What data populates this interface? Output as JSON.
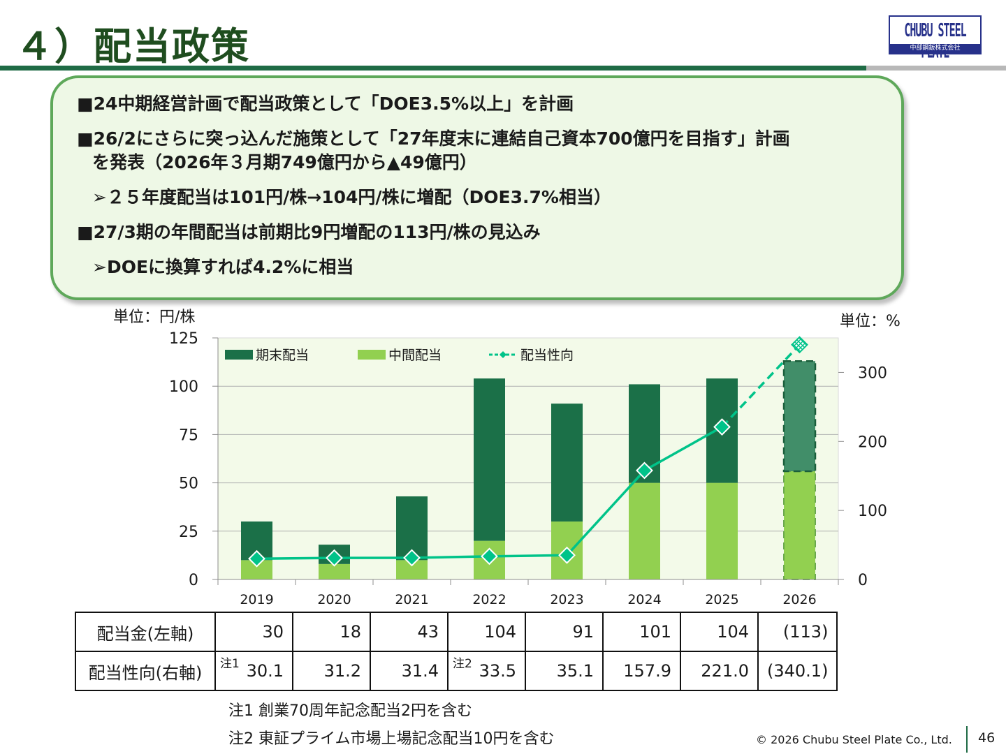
{
  "title": "４）配当政策",
  "logo": {
    "main": "CHUBU STEEL PLATE",
    "sub": "中部鋼鈑株式会社"
  },
  "callout": {
    "lines": [
      "■24中期経営計画で配当政策として「DOE3.5%以上」を計画",
      "■26/2にさらに突っ込んだ施策として「27年度末に連結自己資本700億円を目指す」計画",
      "を発表（2026年３月期749億円から▲49億円）",
      "➢２５年度配当は101円/株→104円/株に増配（DOE3.7%相当）",
      "■27/3期の年間配当は前期比9円増配の113円/株の見込み",
      "➢DOEに換算すれば4.2%に相当"
    ]
  },
  "chart_data": {
    "type": "bar",
    "categories": [
      "2019",
      "2020",
      "2021",
      "2022",
      "2023",
      "2024",
      "2025",
      "2026"
    ],
    "series": [
      {
        "name": "期末配当",
        "values": [
          20,
          10,
          33,
          84,
          61,
          51,
          54,
          57
        ],
        "color": "#1b7048"
      },
      {
        "name": "中間配当",
        "values": [
          10,
          8,
          10,
          20,
          30,
          50,
          50,
          56
        ],
        "color": "#92d050"
      },
      {
        "name": "配当性向",
        "values": [
          30.1,
          31.2,
          31.4,
          33.5,
          35.1,
          157.9,
          221.0,
          340.1
        ],
        "color": "#00c389",
        "axis": "right",
        "type": "line"
      }
    ],
    "forecast_category": "2026",
    "yleft": {
      "label": "単位：円/株",
      "ticks": [
        0,
        25,
        50,
        75,
        100,
        125
      ],
      "ylim": [
        0,
        125
      ]
    },
    "yright": {
      "label": "単位：%",
      "ticks": [
        0,
        100,
        200,
        300
      ],
      "ylim": [
        0,
        350
      ]
    },
    "legend_placement": "top",
    "grid": true
  },
  "table": {
    "rows": [
      {
        "label": "配当金(左軸)",
        "cells": [
          {
            "note": "",
            "value": "30"
          },
          {
            "note": "",
            "value": "18"
          },
          {
            "note": "",
            "value": "43"
          },
          {
            "note": "",
            "value": "104"
          },
          {
            "note": "",
            "value": "91"
          },
          {
            "note": "",
            "value": "101"
          },
          {
            "note": "",
            "value": "104"
          },
          {
            "note": "",
            "value": "(113)"
          }
        ]
      },
      {
        "label": "配当性向(右軸)",
        "cells": [
          {
            "note": "注1",
            "value": "30.1"
          },
          {
            "note": "",
            "value": "31.2"
          },
          {
            "note": "",
            "value": "31.4"
          },
          {
            "note": "注2",
            "value": "33.5"
          },
          {
            "note": "",
            "value": "35.1"
          },
          {
            "note": "",
            "value": "157.9"
          },
          {
            "note": "",
            "value": "221.0"
          },
          {
            "note": "",
            "value": "(340.1)"
          }
        ]
      }
    ]
  },
  "notes": [
    "注1 創業70周年記念配当2円を含む",
    "注2 東証プライム市場上場記念配当10円を含む"
  ],
  "footer": {
    "copyright": "© 2026 Chubu Steel Plate Co., Ltd.",
    "page": "46"
  }
}
